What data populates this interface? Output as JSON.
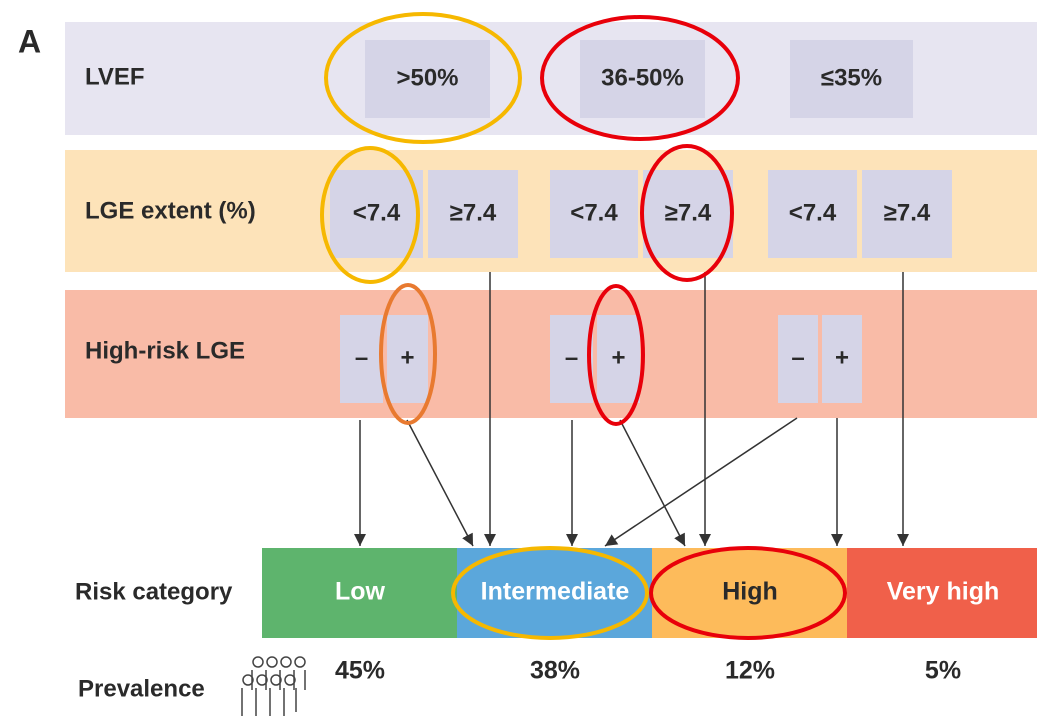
{
  "panel_label": "A",
  "rows": [
    {
      "label": "LVEF",
      "options": [
        ">50%",
        "36-50%",
        "≤35%"
      ]
    },
    {
      "label": "LGE extent (%)",
      "options": [
        "<7.4",
        "≥7.4",
        "<7.4",
        "≥7.4",
        "<7.4",
        "≥7.4"
      ]
    },
    {
      "label": "High-risk LGE",
      "options": [
        "–",
        "+",
        "–",
        "+",
        "–",
        "+"
      ]
    }
  ],
  "risk": {
    "label": "Risk category",
    "categories": [
      "Low",
      "Intermediate",
      "High",
      "Very high"
    ]
  },
  "prevalence": {
    "label": "Prevalence",
    "values": [
      "45%",
      "38%",
      "12%",
      "5%"
    ]
  }
}
